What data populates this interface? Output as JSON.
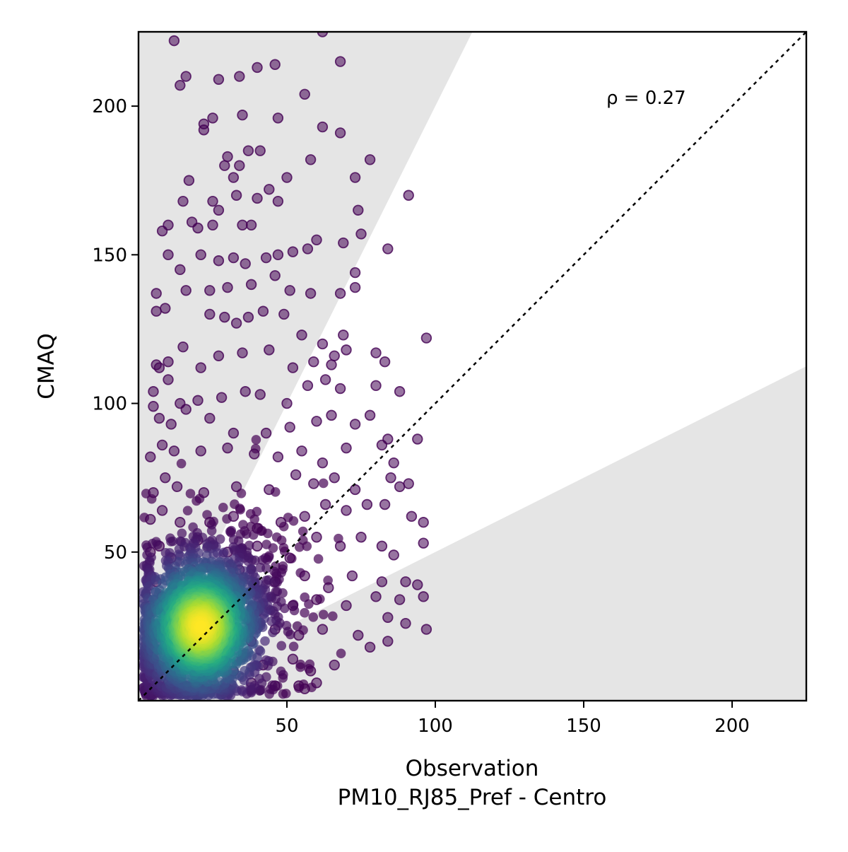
{
  "chart_data": {
    "type": "scatter",
    "xlabel": "Observation",
    "xlabel2": "PM10_RJ85_Pref - Centro",
    "ylabel": "CMAQ",
    "annotation": "ρ = 0.27",
    "xlim": [
      0,
      225
    ],
    "ylim": [
      0,
      225
    ],
    "xticks": [
      50,
      100,
      150,
      200
    ],
    "yticks": [
      50,
      100,
      150,
      200
    ],
    "grid": false,
    "legend": "none",
    "reference_line": {
      "style": "dotted",
      "slope": 1,
      "color": "#000000"
    },
    "shaded_bands": [
      {
        "name": "upper",
        "slope_low": 2,
        "color": "#e5e5e5"
      },
      {
        "name": "lower",
        "slope_high": 0.5,
        "color": "#e5e5e5"
      }
    ],
    "colormap": "viridis",
    "density_center": [
      21,
      25
    ],
    "sample_points": [
      [
        12,
        222
      ],
      [
        62,
        225
      ],
      [
        16,
        210
      ],
      [
        14,
        207
      ],
      [
        27,
        209
      ],
      [
        34,
        210
      ],
      [
        40,
        213
      ],
      [
        46,
        214
      ],
      [
        68,
        215
      ],
      [
        22,
        194
      ],
      [
        22,
        192
      ],
      [
        25,
        196
      ],
      [
        35,
        197
      ],
      [
        47,
        196
      ],
      [
        56,
        204
      ],
      [
        62,
        193
      ],
      [
        68,
        191
      ],
      [
        58,
        182
      ],
      [
        29,
        180
      ],
      [
        30,
        183
      ],
      [
        37,
        185
      ],
      [
        41,
        185
      ],
      [
        34,
        180
      ],
      [
        32,
        176
      ],
      [
        44,
        172
      ],
      [
        50,
        176
      ],
      [
        73,
        176
      ],
      [
        78,
        182
      ],
      [
        91,
        170
      ],
      [
        17,
        175
      ],
      [
        15,
        168
      ],
      [
        25,
        168
      ],
      [
        27,
        165
      ],
      [
        40,
        169
      ],
      [
        47,
        168
      ],
      [
        33,
        170
      ],
      [
        74,
        165
      ],
      [
        75,
        157
      ],
      [
        8,
        158
      ],
      [
        10,
        160
      ],
      [
        18,
        161
      ],
      [
        20,
        159
      ],
      [
        25,
        160
      ],
      [
        35,
        160
      ],
      [
        38,
        160
      ],
      [
        52,
        151
      ],
      [
        57,
        152
      ],
      [
        60,
        155
      ],
      [
        69,
        154
      ],
      [
        84,
        152
      ],
      [
        10,
        150
      ],
      [
        14,
        145
      ],
      [
        21,
        150
      ],
      [
        27,
        148
      ],
      [
        32,
        149
      ],
      [
        36,
        147
      ],
      [
        43,
        149
      ],
      [
        47,
        150
      ],
      [
        6,
        137
      ],
      [
        6,
        131
      ],
      [
        9,
        132
      ],
      [
        16,
        138
      ],
      [
        24,
        138
      ],
      [
        30,
        139
      ],
      [
        38,
        140
      ],
      [
        46,
        143
      ],
      [
        51,
        138
      ],
      [
        58,
        137
      ],
      [
        73,
        144
      ],
      [
        73,
        139
      ],
      [
        68,
        137
      ],
      [
        24,
        130
      ],
      [
        29,
        129
      ],
      [
        33,
        127
      ],
      [
        37,
        129
      ],
      [
        42,
        131
      ],
      [
        49,
        130
      ],
      [
        55,
        123
      ],
      [
        62,
        120
      ],
      [
        66,
        116
      ],
      [
        69,
        123
      ],
      [
        97,
        122
      ],
      [
        6,
        113
      ],
      [
        7,
        112
      ],
      [
        10,
        114
      ],
      [
        15,
        119
      ],
      [
        21,
        112
      ],
      [
        27,
        116
      ],
      [
        35,
        117
      ],
      [
        44,
        118
      ],
      [
        52,
        112
      ],
      [
        59,
        114
      ],
      [
        65,
        113
      ],
      [
        70,
        118
      ],
      [
        80,
        117
      ],
      [
        83,
        114
      ],
      [
        5,
        104
      ],
      [
        10,
        108
      ],
      [
        14,
        100
      ],
      [
        20,
        101
      ],
      [
        28,
        102
      ],
      [
        36,
        104
      ],
      [
        41,
        103
      ],
      [
        50,
        100
      ],
      [
        57,
        106
      ],
      [
        63,
        108
      ],
      [
        68,
        105
      ],
      [
        80,
        106
      ],
      [
        88,
        104
      ],
      [
        5,
        99
      ],
      [
        7,
        95
      ],
      [
        11,
        93
      ],
      [
        16,
        98
      ],
      [
        24,
        95
      ],
      [
        32,
        90
      ],
      [
        43,
        90
      ],
      [
        51,
        92
      ],
      [
        60,
        94
      ],
      [
        65,
        96
      ],
      [
        73,
        93
      ],
      [
        78,
        96
      ],
      [
        84,
        88
      ],
      [
        94,
        88
      ],
      [
        4,
        82
      ],
      [
        8,
        86
      ],
      [
        12,
        84
      ],
      [
        21,
        84
      ],
      [
        30,
        85
      ],
      [
        39,
        83
      ],
      [
        47,
        82
      ],
      [
        55,
        84
      ],
      [
        62,
        80
      ],
      [
        70,
        85
      ],
      [
        82,
        86
      ],
      [
        86,
        80
      ],
      [
        5,
        70
      ],
      [
        9,
        75
      ],
      [
        13,
        72
      ],
      [
        22,
        70
      ],
      [
        33,
        72
      ],
      [
        44,
        71
      ],
      [
        53,
        76
      ],
      [
        59,
        73
      ],
      [
        66,
        75
      ],
      [
        73,
        71
      ],
      [
        85,
        75
      ],
      [
        88,
        72
      ],
      [
        91,
        73
      ],
      [
        4,
        61
      ],
      [
        8,
        64
      ],
      [
        14,
        60
      ],
      [
        24,
        60
      ],
      [
        32,
        62
      ],
      [
        40,
        58
      ],
      [
        48,
        60
      ],
      [
        56,
        62
      ],
      [
        63,
        66
      ],
      [
        70,
        64
      ],
      [
        77,
        66
      ],
      [
        83,
        66
      ],
      [
        92,
        62
      ],
      [
        96,
        60
      ],
      [
        4,
        50
      ],
      [
        7,
        52
      ],
      [
        11,
        48
      ],
      [
        20,
        54
      ],
      [
        30,
        50
      ],
      [
        40,
        52
      ],
      [
        51,
        48
      ],
      [
        60,
        55
      ],
      [
        68,
        52
      ],
      [
        75,
        55
      ],
      [
        82,
        52
      ],
      [
        86,
        49
      ],
      [
        96,
        53
      ],
      [
        4,
        42
      ],
      [
        6,
        40
      ],
      [
        12,
        43
      ],
      [
        18,
        44
      ],
      [
        26,
        42
      ],
      [
        34,
        44
      ],
      [
        46,
        40
      ],
      [
        56,
        42
      ],
      [
        64,
        38
      ],
      [
        72,
        42
      ],
      [
        82,
        40
      ],
      [
        90,
        40
      ],
      [
        94,
        39
      ],
      [
        4,
        32
      ],
      [
        8,
        35
      ],
      [
        14,
        36
      ],
      [
        28,
        34
      ],
      [
        40,
        30
      ],
      [
        52,
        32
      ],
      [
        60,
        34
      ],
      [
        70,
        32
      ],
      [
        80,
        35
      ],
      [
        88,
        34
      ],
      [
        96,
        35
      ],
      [
        5,
        22
      ],
      [
        10,
        25
      ],
      [
        30,
        22
      ],
      [
        38,
        20
      ],
      [
        46,
        24
      ],
      [
        54,
        22
      ],
      [
        62,
        24
      ],
      [
        74,
        22
      ],
      [
        84,
        28
      ],
      [
        90,
        26
      ],
      [
        97,
        24
      ],
      [
        6,
        12
      ],
      [
        12,
        14
      ],
      [
        22,
        12
      ],
      [
        32,
        10
      ],
      [
        42,
        12
      ],
      [
        52,
        14
      ],
      [
        58,
        10
      ],
      [
        66,
        12
      ],
      [
        78,
        18
      ],
      [
        84,
        20
      ],
      [
        5,
        4
      ],
      [
        10,
        6
      ],
      [
        20,
        5
      ],
      [
        30,
        4
      ],
      [
        38,
        6
      ],
      [
        46,
        5
      ],
      [
        54,
        5
      ],
      [
        56,
        4
      ],
      [
        60,
        6
      ]
    ]
  }
}
